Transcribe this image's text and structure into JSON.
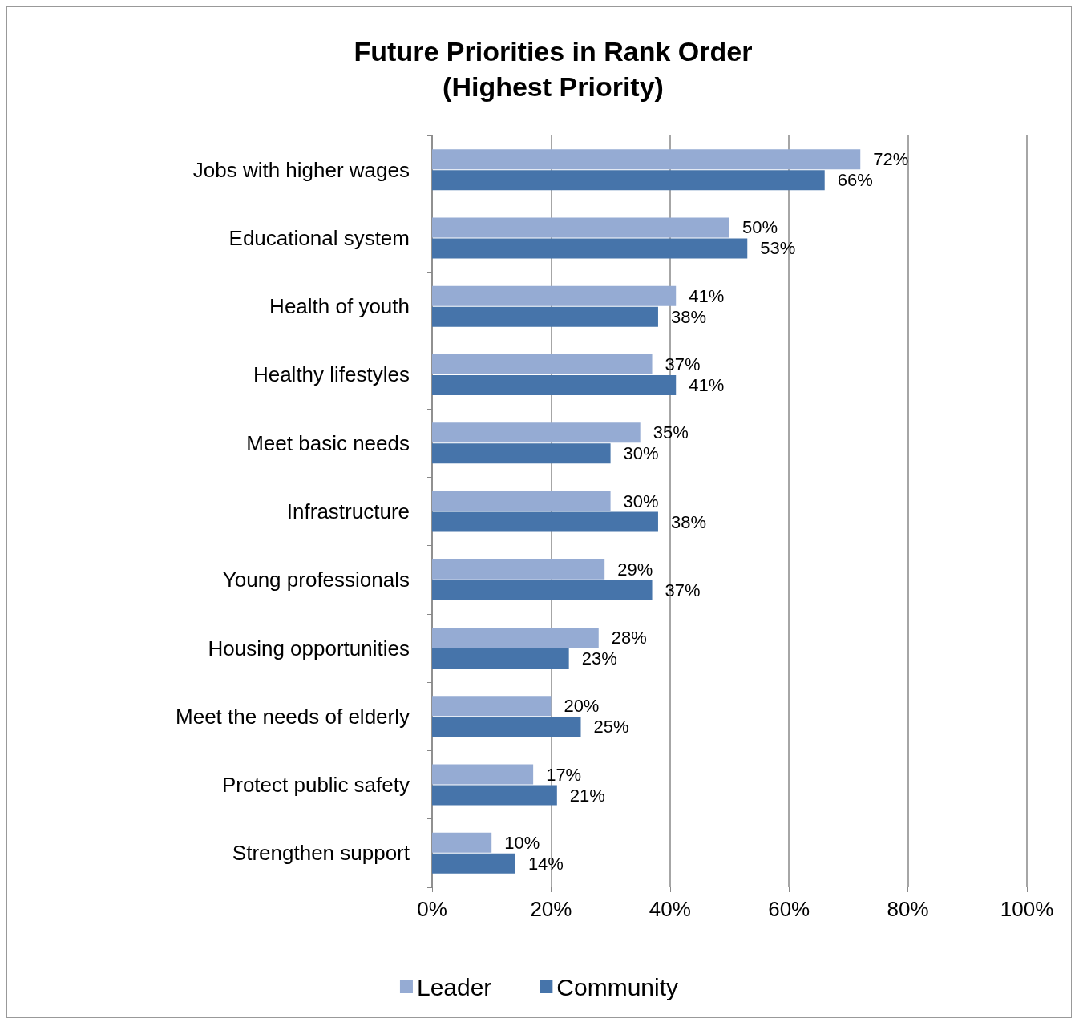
{
  "chart_data": {
    "type": "bar",
    "orientation": "horizontal",
    "title": "Future Priorities in Rank Order\n(Highest Priority)",
    "categories": [
      "Jobs with higher wages",
      "Educational system",
      "Health of youth",
      "Healthy lifestyles",
      "Meet basic needs",
      "Infrastructure",
      "Young professionals",
      "Housing opportunities",
      "Meet the needs of elderly",
      "Protect public safety",
      "Strengthen support"
    ],
    "series": [
      {
        "name": "Leader",
        "color": "#95abd3",
        "values": [
          72,
          50,
          41,
          37,
          35,
          30,
          29,
          28,
          20,
          17,
          10
        ],
        "value_labels": [
          "72%",
          "50%",
          "41%",
          "37%",
          "35%",
          "30%",
          "29%",
          "28%",
          "20%",
          "17%",
          "10%"
        ]
      },
      {
        "name": "Community",
        "color": "#4674aa",
        "values": [
          66,
          53,
          38,
          41,
          30,
          38,
          37,
          23,
          25,
          21,
          14
        ],
        "value_labels": [
          "66%",
          "53%",
          "38%",
          "41%",
          "30%",
          "38%",
          "37%",
          "23%",
          "25%",
          "21%",
          "14%"
        ]
      }
    ],
    "xlim": [
      0,
      100
    ],
    "xticks": [
      {
        "value": 0,
        "label": "0%"
      },
      {
        "value": 20,
        "label": "20%"
      },
      {
        "value": 40,
        "label": "40%"
      },
      {
        "value": 60,
        "label": "60%"
      },
      {
        "value": 80,
        "label": "80%"
      },
      {
        "value": 100,
        "label": "100%"
      }
    ],
    "grid": "x",
    "legend": "bottom"
  }
}
